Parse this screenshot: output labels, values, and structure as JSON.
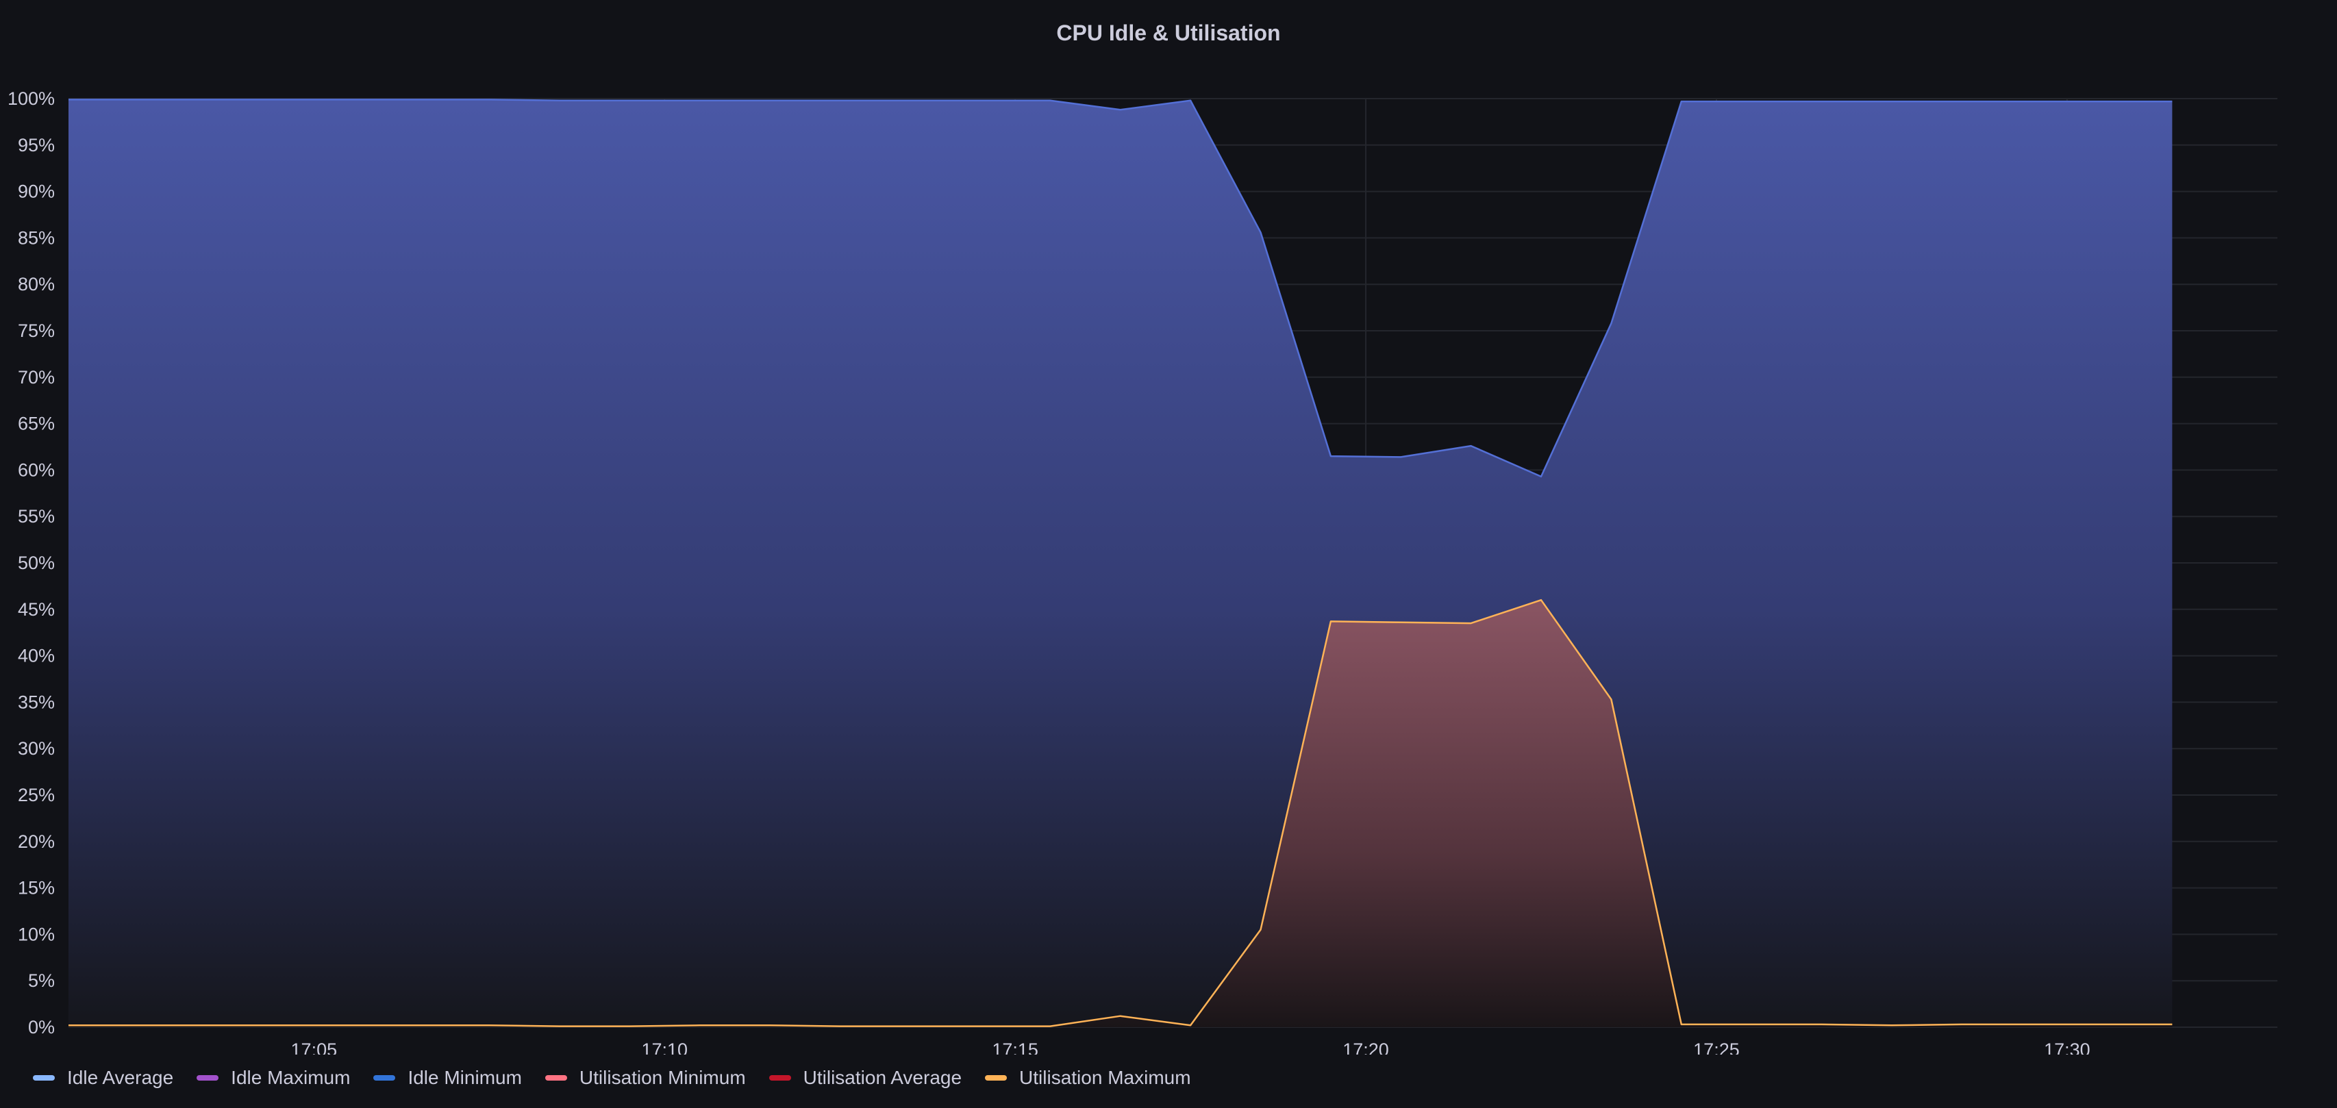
{
  "panel": {
    "title": "CPU Idle & Utilisation"
  },
  "chart_data": {
    "type": "area",
    "title": "CPU Idle & Utilisation",
    "xlabel": "",
    "ylabel": "",
    "ylim": [
      0,
      100
    ],
    "y_ticks": [
      "0%",
      "5%",
      "10%",
      "15%",
      "20%",
      "25%",
      "30%",
      "35%",
      "40%",
      "45%",
      "50%",
      "55%",
      "60%",
      "65%",
      "70%",
      "75%",
      "80%",
      "85%",
      "90%",
      "95%",
      "100%"
    ],
    "x_ticks": [
      "17:05",
      "17:10",
      "17:15",
      "17:20",
      "17:25",
      "17:30"
    ],
    "grid": true,
    "legend_position": "bottom-left",
    "x": [
      "17:01:30",
      "17:02:30",
      "17:03:30",
      "17:04:30",
      "17:05:30",
      "17:06:30",
      "17:07:30",
      "17:08:30",
      "17:09:30",
      "17:10:30",
      "17:11:30",
      "17:12:30",
      "17:13:30",
      "17:14:30",
      "17:15:30",
      "17:16:30",
      "17:17:30",
      "17:18:30",
      "17:19:30",
      "17:20:30",
      "17:21:30",
      "17:22:30",
      "17:23:30",
      "17:24:30",
      "17:25:30",
      "17:26:30",
      "17:27:30",
      "17:28:30",
      "17:29:30",
      "17:30:30",
      "17:31:30"
    ],
    "series": [
      {
        "name": "Idle Minimum",
        "color": "#5470d6",
        "values": [
          99.9,
          99.9,
          99.9,
          99.9,
          99.9,
          99.9,
          99.9,
          99.8,
          99.8,
          99.8,
          99.8,
          99.8,
          99.8,
          99.8,
          99.8,
          98.8,
          99.8,
          85.6,
          61.5,
          61.4,
          62.6,
          59.3,
          75.8,
          99.7,
          99.7,
          99.7,
          99.7,
          99.7,
          99.7,
          99.7,
          99.7
        ]
      },
      {
        "name": "Utilisation Maximum",
        "color": "#ffb357",
        "values": [
          0.2,
          0.2,
          0.2,
          0.2,
          0.2,
          0.2,
          0.2,
          0.1,
          0.1,
          0.2,
          0.2,
          0.1,
          0.1,
          0.1,
          0.1,
          1.2,
          0.2,
          10.5,
          43.7,
          43.6,
          43.5,
          46.0,
          35.3,
          0.3,
          0.3,
          0.3,
          0.2,
          0.3,
          0.3,
          0.3,
          0.3
        ]
      }
    ]
  },
  "legend": [
    {
      "label": "Idle Average",
      "color": "#8ab8ff"
    },
    {
      "label": "Idle Maximum",
      "color": "#a352cc"
    },
    {
      "label": "Idle Minimum",
      "color": "#3274d9"
    },
    {
      "label": "Utilisation Minimum",
      "color": "#ff7383"
    },
    {
      "label": "Utilisation Average",
      "color": "#c4162a"
    },
    {
      "label": "Utilisation Maximum",
      "color": "#ffb357"
    }
  ]
}
